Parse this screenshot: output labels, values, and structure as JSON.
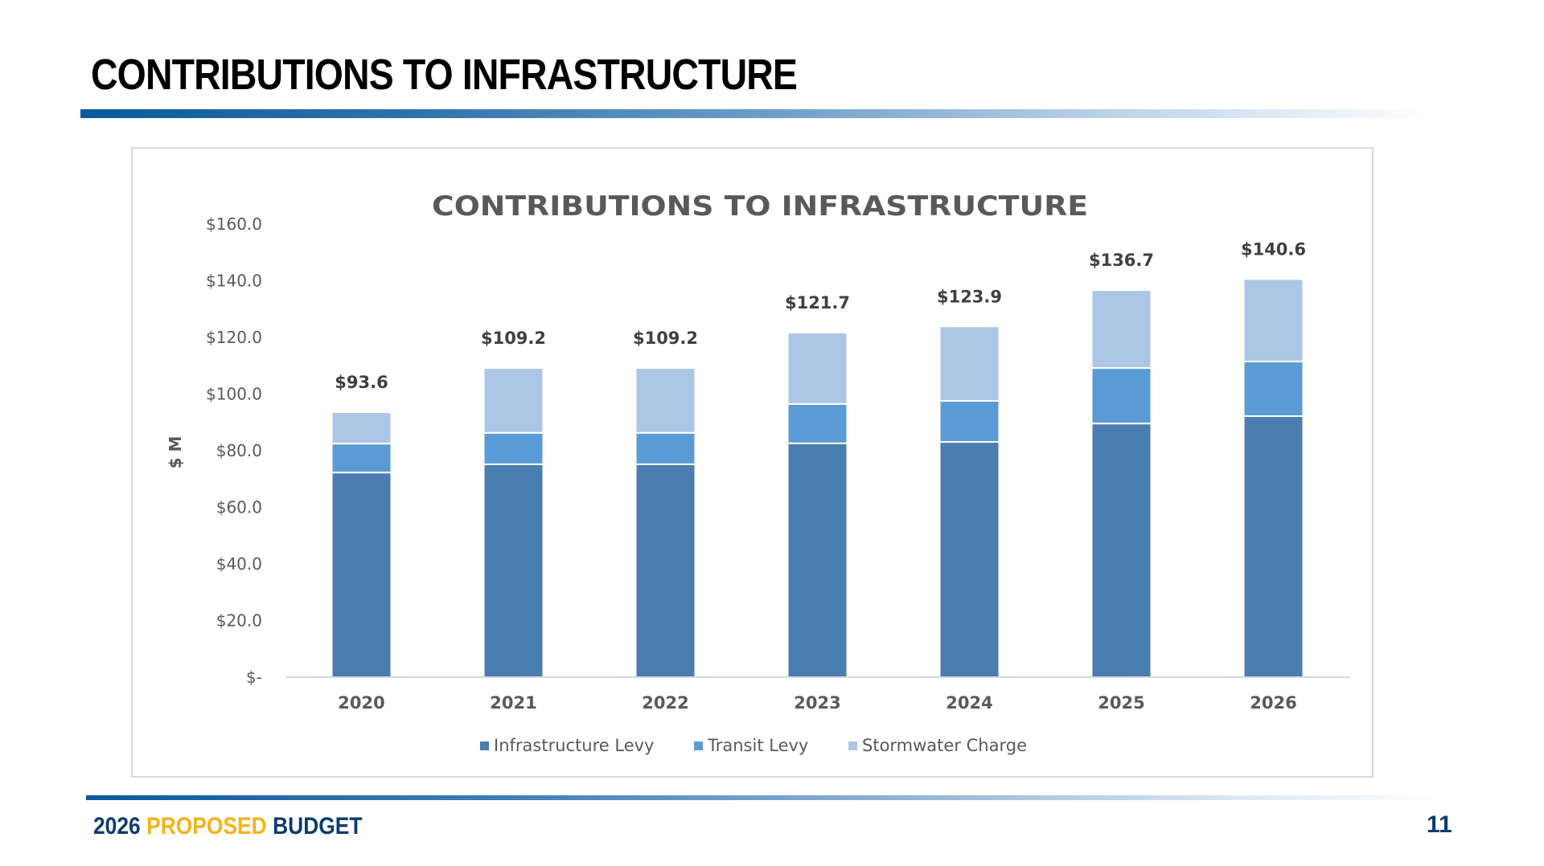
{
  "slide": {
    "title": "CONTRIBUTIONS TO INFRASTRUCTURE",
    "footer": {
      "year": "2026",
      "proposed": "PROPOSED",
      "budget": "BUDGET"
    },
    "page_number": "11"
  },
  "colors": {
    "infrastructure_levy": "#4a7eb0",
    "transit_levy": "#5b9bd5",
    "stormwater_charge": "#adc6e5",
    "title_text": "#595959",
    "axis_text": "#595959",
    "data_label": "#404040"
  },
  "chart_data": {
    "type": "bar",
    "stacked": true,
    "title": "CONTRIBUTIONS TO INFRASTRUCTURE",
    "xlabel": "",
    "ylabel": "$ M",
    "ylim": [
      0,
      160
    ],
    "yticks": [
      0,
      20,
      40,
      60,
      80,
      100,
      120,
      140,
      160
    ],
    "ytick_labels": [
      "$-",
      "$20.0",
      "$40.0",
      "$60.0",
      "$80.0",
      "$100.0",
      "$120.0",
      "$140.0",
      "$160.0"
    ],
    "categories": [
      "2020",
      "2021",
      "2022",
      "2023",
      "2024",
      "2025",
      "2026"
    ],
    "series": [
      {
        "name": "Infrastructure Levy",
        "values": [
          72.3,
          75.2,
          75.2,
          82.6,
          83.1,
          89.6,
          92.2
        ]
      },
      {
        "name": "Transit Levy",
        "values": [
          10.2,
          11.1,
          11.1,
          13.9,
          14.5,
          19.6,
          19.3
        ]
      },
      {
        "name": "Stormwater Charge",
        "values": [
          11.1,
          22.9,
          22.9,
          25.2,
          26.3,
          27.5,
          29.1
        ]
      }
    ],
    "totals": [
      93.6,
      109.2,
      109.2,
      121.7,
      123.9,
      136.7,
      140.6
    ],
    "total_labels": [
      "$93.6",
      "$109.2",
      "$109.2",
      "$121.7",
      "$123.9",
      "$136.7",
      "$140.6"
    ],
    "grid": false,
    "legend_position": "bottom"
  }
}
